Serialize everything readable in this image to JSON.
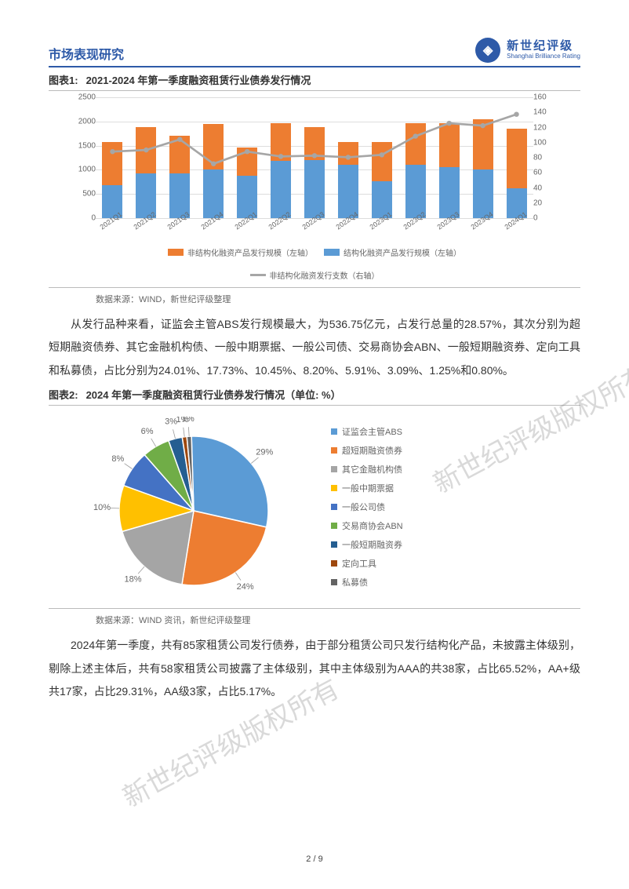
{
  "header": {
    "left": "市场表现研究",
    "brand_cn": "新世纪评级",
    "brand_en": "Shanghai Brilliance Rating",
    "logo_glyph": "◈"
  },
  "chart1": {
    "title_prefix": "图表1:",
    "title": "2021-2024 年第一季度融资租赁行业债券发行情况",
    "type": "stacked-bar-with-line",
    "categories": [
      "2021Q1",
      "2021Q2",
      "2021Q3",
      "2021Q4",
      "2022Q1",
      "2022Q2",
      "2022Q3",
      "2022Q4",
      "2023Q1",
      "2023Q2",
      "2023Q3",
      "2023Q4",
      "2024Q1"
    ],
    "series_orange_label": "非结构化融资产品发行规模（左轴）",
    "series_blue_label": "结构化融资产品发行规模（左轴）",
    "series_line_label": "非结构化融资发行支数（右轴）",
    "blue_values": [
      680,
      930,
      920,
      1000,
      880,
      1180,
      1200,
      1100,
      770,
      1100,
      1050,
      1000,
      620
    ],
    "orange_values": [
      900,
      950,
      780,
      950,
      580,
      780,
      680,
      470,
      800,
      860,
      910,
      1050,
      1230
    ],
    "line_values": [
      93,
      95,
      108,
      78,
      93,
      87,
      88,
      86,
      89,
      112,
      128,
      125,
      139
    ],
    "ylim_left": [
      0,
      2500
    ],
    "ytick_left_step": 500,
    "ylim_right": [
      0,
      160
    ],
    "ytick_right_step": 20,
    "color_orange": "#ed7d31",
    "color_blue": "#5b9bd5",
    "color_line": "#a6a6a6",
    "grid_color": "#dddddd",
    "source": "数据来源：WIND，新世纪评级整理"
  },
  "para1": "从发行品种来看，证监会主管ABS发行规模最大，为536.75亿元，占发行总量的28.57%，其次分别为超短期融资债券、其它金融机构债、一般中期票据、一般公司债、交易商协会ABN、一般短期融资券、定向工具和私募债，占比分别为24.01%、17.73%、10.45%、8.20%、5.91%、3.09%、1.25%和0.80%。",
  "chart2": {
    "title_prefix": "图表2:",
    "title": "2024 年第一季度融资租赁行业债券发行情况（单位: %）",
    "type": "pie",
    "slices": [
      {
        "label": "证监会主管ABS",
        "value": 29,
        "color": "#5b9bd5",
        "display": "29%"
      },
      {
        "label": "超短期融资债券",
        "value": 24,
        "color": "#ed7d31",
        "display": "24%"
      },
      {
        "label": "其它金融机构债",
        "value": 18,
        "color": "#a5a5a5",
        "display": "18%"
      },
      {
        "label": "一般中期票据",
        "value": 10,
        "color": "#ffc000",
        "display": "10%"
      },
      {
        "label": "一般公司债",
        "value": 8,
        "color": "#4472c4",
        "display": "8%"
      },
      {
        "label": "交易商协会ABN",
        "value": 6,
        "color": "#70ad47",
        "display": "6%"
      },
      {
        "label": "一般短期融资券",
        "value": 3,
        "color": "#255e91",
        "display": "3%"
      },
      {
        "label": "定向工具",
        "value": 1,
        "color": "#9e480e",
        "display": "1%"
      },
      {
        "label": "私募债",
        "value": 1,
        "color": "#636363",
        "display": "1%"
      }
    ],
    "source": "数据来源：WIND 资讯，新世纪评级整理"
  },
  "para2": "2024年第一季度，共有85家租赁公司发行债券，由于部分租赁公司只发行结构化产品，未披露主体级别，剔除上述主体后，共有58家租赁公司披露了主体级别，其中主体级别为AAA的共38家，占比65.52%，AA+级共17家，占比29.31%，AA级3家，占比5.17%。",
  "watermark": "新世纪评级版权所有",
  "page": "2 / 9"
}
